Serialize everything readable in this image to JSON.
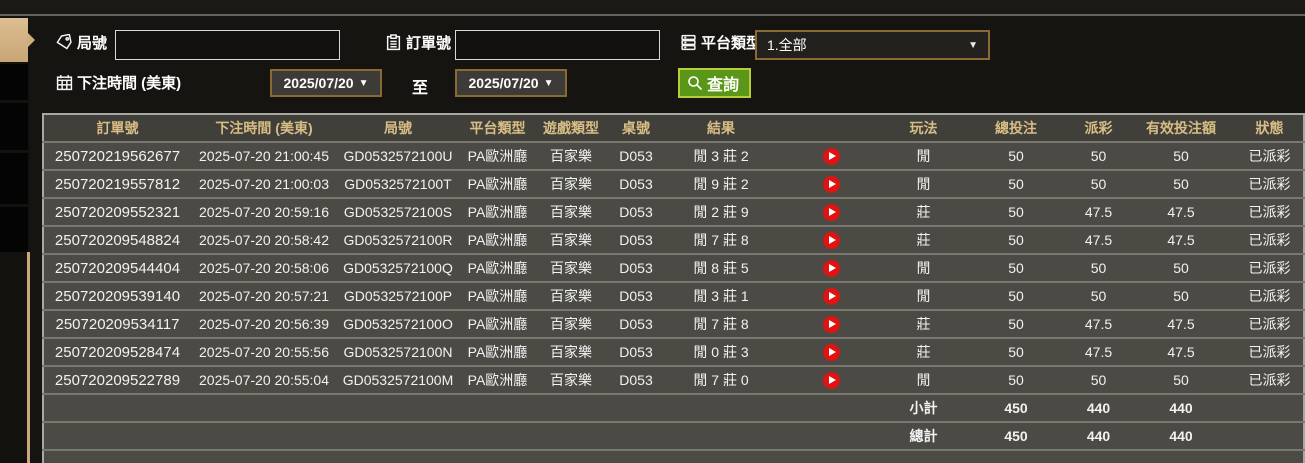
{
  "filters": {
    "round_label": "局號",
    "round_value": "",
    "order_label": "訂單號",
    "order_value": "",
    "platform_label": "平台類型",
    "platform_value": "1.全部",
    "bet_time_label": "下注時間 (美東)",
    "date_from": "2025/07/20",
    "to_label": "至",
    "date_to": "2025/07/20",
    "search_label": "查詢"
  },
  "table": {
    "columns": [
      "訂單號",
      "下注時間 (美東)",
      "局號",
      "平台類型",
      "遊戲類型",
      "桌號",
      "結果",
      "",
      "玩法",
      "總投注",
      "派彩",
      "有效投注額",
      "狀態"
    ],
    "rows": [
      {
        "order": "250720219562677",
        "time": "2025-07-20 21:00:45",
        "round": "GD0532572100U",
        "platform": "PA歐洲廳",
        "game": "百家樂",
        "table": "D053",
        "result": "閒 3 莊 2",
        "play": "閒",
        "total_bet": "50",
        "payout": "50",
        "valid_bet": "50",
        "status": "已派彩"
      },
      {
        "order": "250720219557812",
        "time": "2025-07-20 21:00:03",
        "round": "GD0532572100T",
        "platform": "PA歐洲廳",
        "game": "百家樂",
        "table": "D053",
        "result": "閒 9 莊 2",
        "play": "閒",
        "total_bet": "50",
        "payout": "50",
        "valid_bet": "50",
        "status": "已派彩"
      },
      {
        "order": "250720209552321",
        "time": "2025-07-20 20:59:16",
        "round": "GD0532572100S",
        "platform": "PA歐洲廳",
        "game": "百家樂",
        "table": "D053",
        "result": "閒 2 莊 9",
        "play": "莊",
        "total_bet": "50",
        "payout": "47.5",
        "valid_bet": "47.5",
        "status": "已派彩"
      },
      {
        "order": "250720209548824",
        "time": "2025-07-20 20:58:42",
        "round": "GD0532572100R",
        "platform": "PA歐洲廳",
        "game": "百家樂",
        "table": "D053",
        "result": "閒 7 莊 8",
        "play": "莊",
        "total_bet": "50",
        "payout": "47.5",
        "valid_bet": "47.5",
        "status": "已派彩"
      },
      {
        "order": "250720209544404",
        "time": "2025-07-20 20:58:06",
        "round": "GD0532572100Q",
        "platform": "PA歐洲廳",
        "game": "百家樂",
        "table": "D053",
        "result": "閒 8 莊 5",
        "play": "閒",
        "total_bet": "50",
        "payout": "50",
        "valid_bet": "50",
        "status": "已派彩"
      },
      {
        "order": "250720209539140",
        "time": "2025-07-20 20:57:21",
        "round": "GD0532572100P",
        "platform": "PA歐洲廳",
        "game": "百家樂",
        "table": "D053",
        "result": "閒 3 莊 1",
        "play": "閒",
        "total_bet": "50",
        "payout": "50",
        "valid_bet": "50",
        "status": "已派彩"
      },
      {
        "order": "250720209534117",
        "time": "2025-07-20 20:56:39",
        "round": "GD0532572100O",
        "platform": "PA歐洲廳",
        "game": "百家樂",
        "table": "D053",
        "result": "閒 7 莊 8",
        "play": "莊",
        "total_bet": "50",
        "payout": "47.5",
        "valid_bet": "47.5",
        "status": "已派彩"
      },
      {
        "order": "250720209528474",
        "time": "2025-07-20 20:55:56",
        "round": "GD0532572100N",
        "platform": "PA歐洲廳",
        "game": "百家樂",
        "table": "D053",
        "result": "閒 0 莊 3",
        "play": "莊",
        "total_bet": "50",
        "payout": "47.5",
        "valid_bet": "47.5",
        "status": "已派彩"
      },
      {
        "order": "250720209522789",
        "time": "2025-07-20 20:55:04",
        "round": "GD0532572100M",
        "platform": "PA歐洲廳",
        "game": "百家樂",
        "table": "D053",
        "result": "閒 7 莊 0",
        "play": "閒",
        "total_bet": "50",
        "payout": "50",
        "valid_bet": "50",
        "status": "已派彩"
      }
    ],
    "subtotal": {
      "label": "小計",
      "total_bet": "450",
      "payout": "440",
      "valid_bet": "440"
    },
    "total": {
      "label": "總計",
      "total_bet": "450",
      "payout": "440",
      "valid_bet": "440"
    }
  },
  "colors": {
    "header_text": "#d8bd85",
    "value_green": "#4ecb2d",
    "status_green": "#35cc35",
    "totals_yellow": "#e8e62e",
    "play_red": "#e01212",
    "search_green": "#5a9718",
    "accent_tan": "#cfae80"
  }
}
